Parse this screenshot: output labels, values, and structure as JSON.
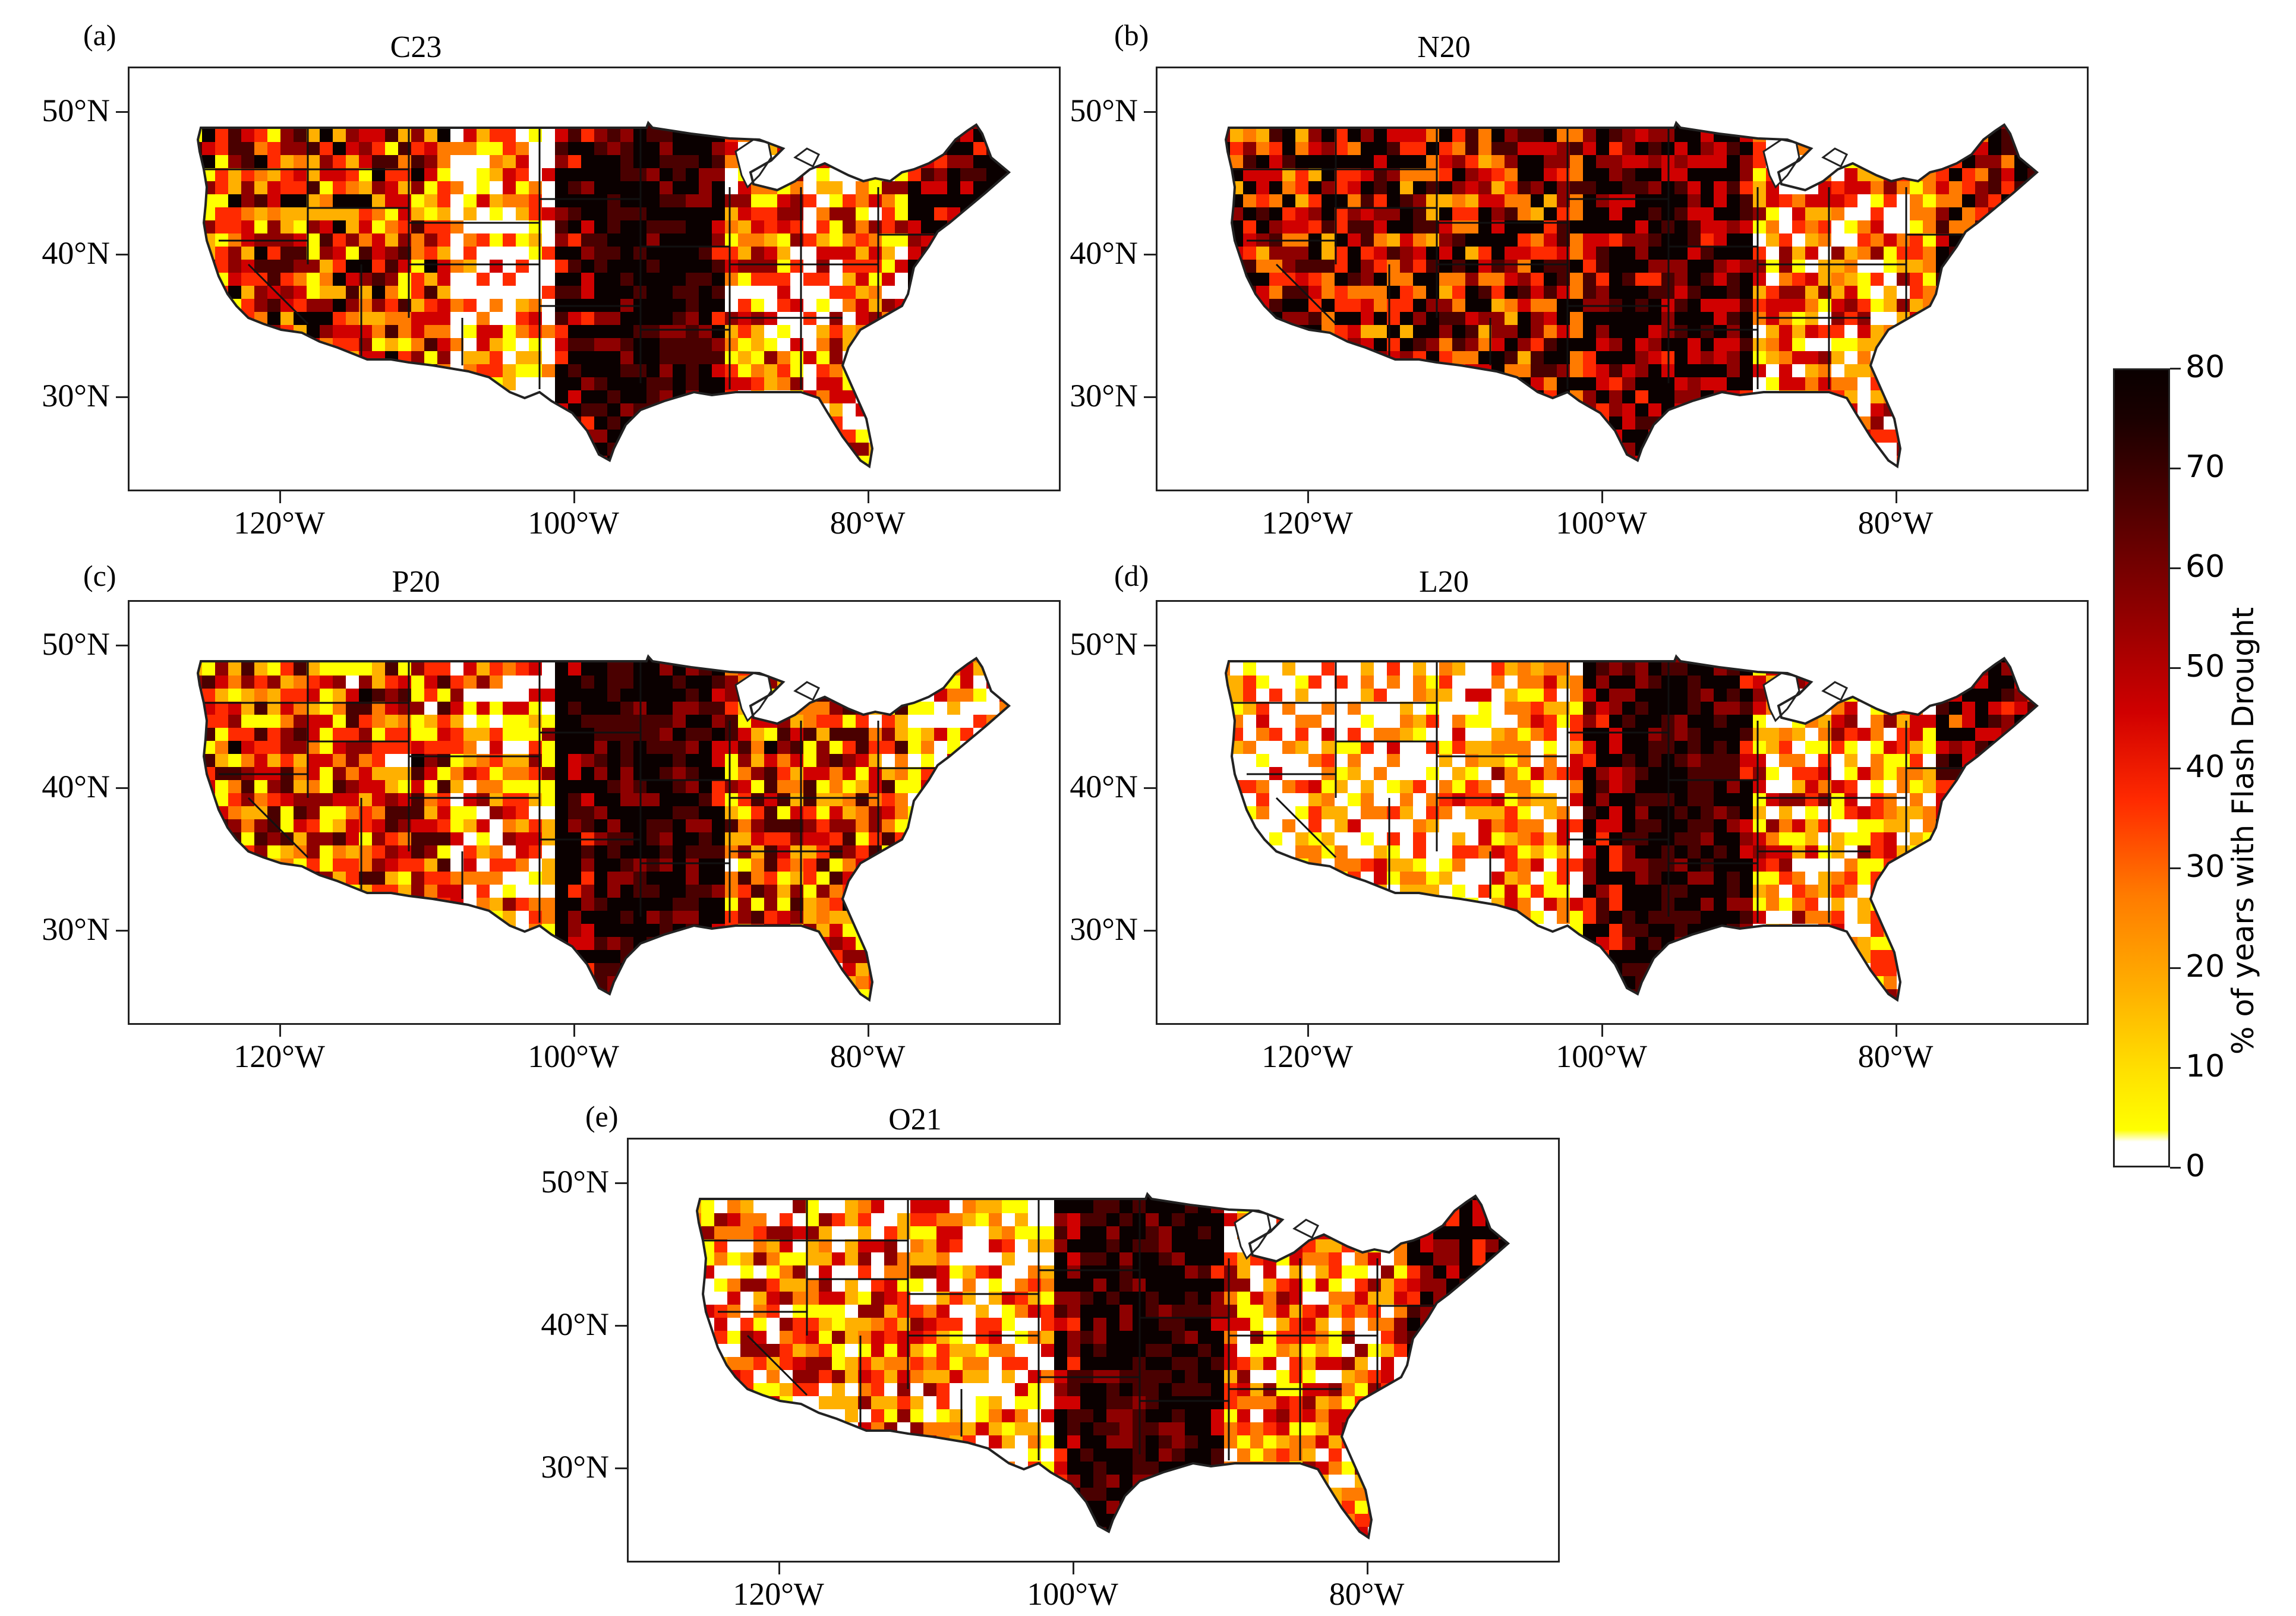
{
  "panels": [
    {
      "letter": "(a)",
      "title": "C23",
      "palette": [
        0.55,
        0.2,
        0.35,
        0.95
      ]
    },
    {
      "letter": "(b)",
      "title": "N20",
      "palette": [
        0.7,
        0.7,
        0.3,
        0.75
      ]
    },
    {
      "letter": "(c)",
      "title": "P20",
      "palette": [
        0.5,
        0.3,
        0.5,
        0.25
      ]
    },
    {
      "letter": "(d)",
      "title": "L20",
      "palette": [
        0.15,
        0.25,
        0.3,
        0.85
      ]
    },
    {
      "letter": "(e)",
      "title": "O21",
      "palette": [
        0.35,
        0.2,
        0.35,
        0.9
      ]
    }
  ],
  "latitude_labels": [
    "50°N",
    "40°N",
    "30°N"
  ],
  "longitude_labels": [
    "120°W",
    "100°W",
    "80°W"
  ],
  "colorbar": {
    "title": "% of years with Flash Drought",
    "ticks": [
      "0",
      "10",
      "20",
      "30",
      "40",
      "50",
      "60",
      "70",
      "80"
    ],
    "min": 0,
    "max": 80,
    "colors": [
      "#ffffff",
      "#ffff00",
      "#ffb000",
      "#ff7b00",
      "#ff2a00",
      "#d00000",
      "#8e0000",
      "#4a0000",
      "#0a0000"
    ]
  }
}
